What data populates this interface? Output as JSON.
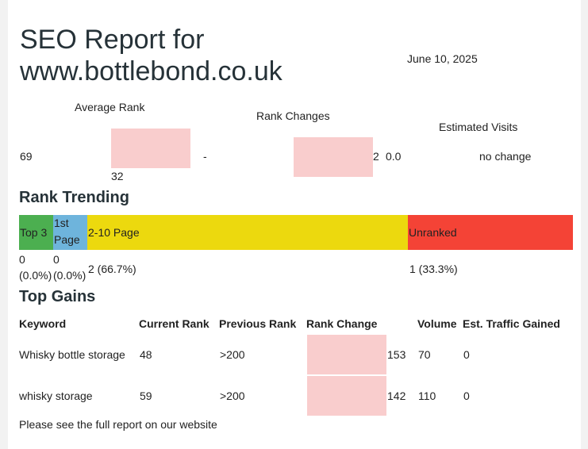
{
  "header": {
    "title_line1": "SEO Report for",
    "title_line2": "www.bottlebond.co.uk",
    "date": "June 10, 2025"
  },
  "summary": {
    "average_rank": {
      "label": "Average Rank",
      "current": "69",
      "previous": "32"
    },
    "rank_changes": {
      "label": "Rank Changes",
      "dash": "-",
      "value": "2",
      "change": "0.0"
    },
    "estimated_visits": {
      "label": "Estimated Visits",
      "value": "no change"
    }
  },
  "rank_trending": {
    "heading": "Rank Trending",
    "segments": [
      {
        "label": "Top 3",
        "count": "0",
        "percent": "(0.0%)",
        "color": "#4caf50"
      },
      {
        "label_line1": "1st",
        "label_line2": "Page",
        "count": "0",
        "percent": "(0.0%)",
        "color": "#6eb4dc"
      },
      {
        "label": "2-10 Page",
        "count_text": "2 (66.7%)",
        "color": "#ecd90e"
      },
      {
        "label": "Unranked",
        "count_text": "1 (33.3%)",
        "color": "#f44336"
      }
    ]
  },
  "top_gains": {
    "heading": "Top Gains",
    "columns": [
      "Keyword",
      "Current Rank",
      "Previous Rank",
      "Rank Change",
      "Volume",
      "Est. Traffic Gained"
    ],
    "rows": [
      {
        "keyword": "Whisky bottle storage",
        "current": "48",
        "previous": ">200",
        "change": "153",
        "volume": "70",
        "traffic": "0"
      },
      {
        "keyword": "whisky storage",
        "current": "59",
        "previous": ">200",
        "change": "142",
        "volume": "110",
        "traffic": "0"
      }
    ]
  },
  "footer": {
    "text": "Please see the full report on our website"
  },
  "colors": {
    "placeholder_box": "#f9cdcd",
    "heading": "#263238"
  }
}
